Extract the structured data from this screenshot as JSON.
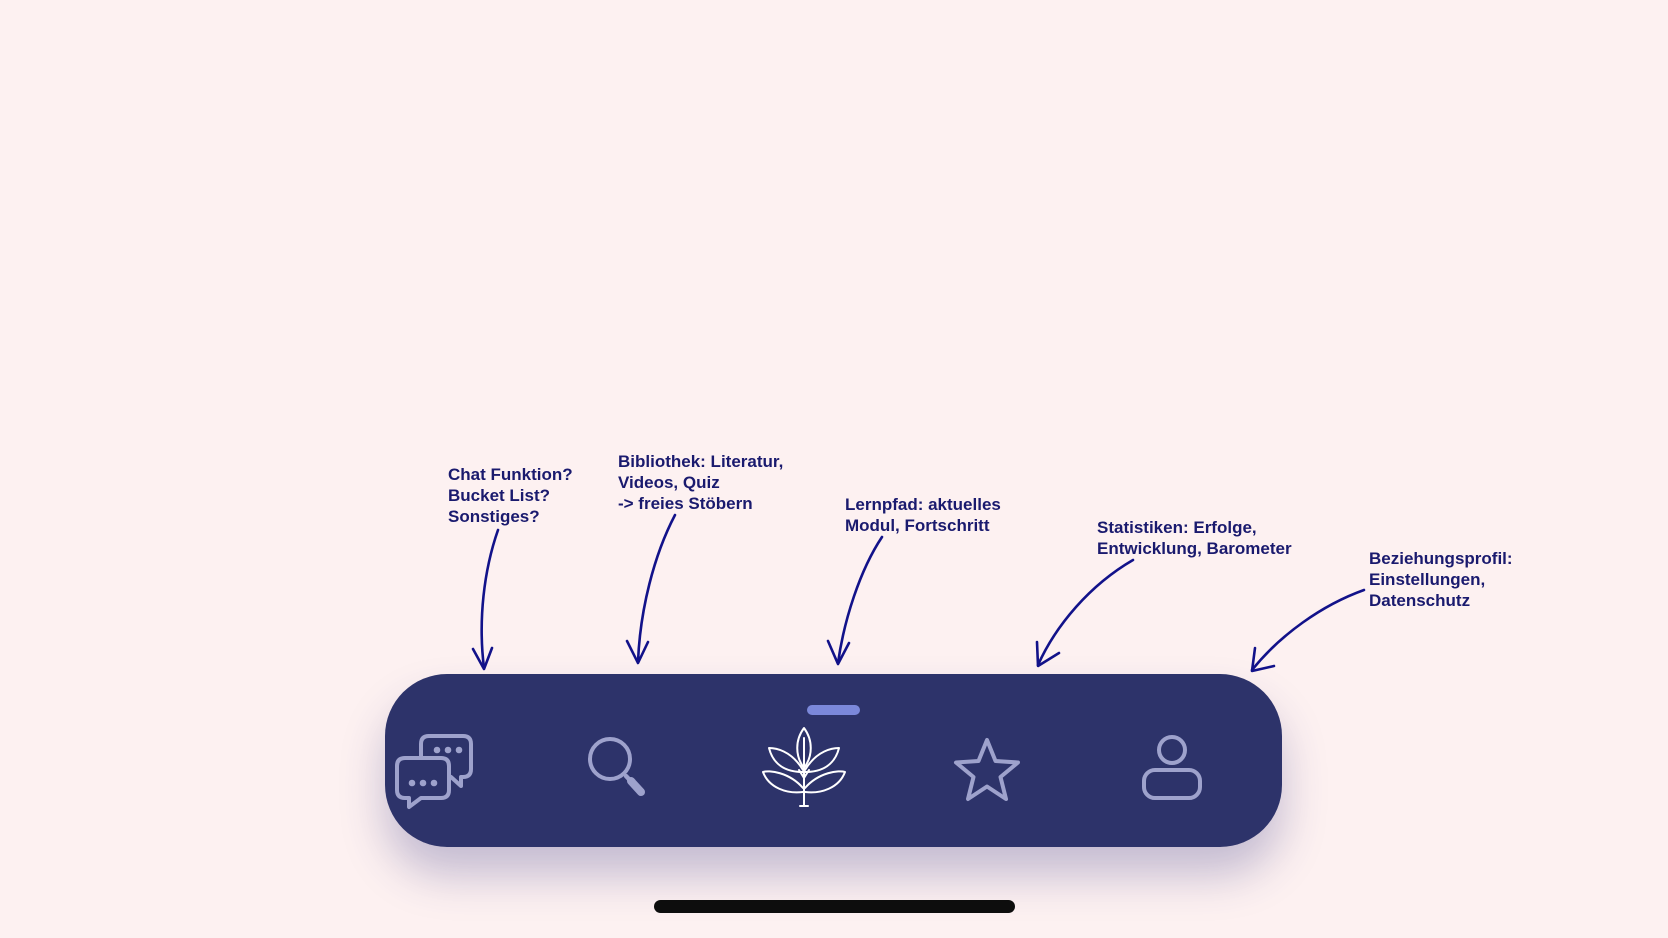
{
  "annotations": {
    "chat": "Chat Funktion?\nBucket List?\nSonstiges?",
    "library": "Bibliothek: Literatur,\nVideos, Quiz\n-> freies Stöbern",
    "path": "Lernpfad: aktuelles\nModul, Fortschritt",
    "stats": "Statistiken: Erfolge,\nEntwicklung, Barometer",
    "profile": "Beziehungsprofil:\nEinstellungen,\nDatenschutz"
  },
  "tab_bar": {
    "active_tab": "path",
    "tabs": [
      {
        "id": "chat",
        "icon": "chat-bubbles-icon",
        "active": false
      },
      {
        "id": "library",
        "icon": "search-icon",
        "active": false
      },
      {
        "id": "path",
        "icon": "plant-icon",
        "active": true
      },
      {
        "id": "stats",
        "icon": "star-icon",
        "active": false
      },
      {
        "id": "profile",
        "icon": "person-icon",
        "active": false
      }
    ]
  },
  "colors": {
    "background": "#fdf1f1",
    "tab_bar": "#2d336a",
    "icon_inactive": "#9ea2cc",
    "icon_active": "#ffffff",
    "drag_handle": "#7b88da",
    "annotation_ink": "#1a1a6e",
    "home_indicator": "#0d0d0d"
  }
}
